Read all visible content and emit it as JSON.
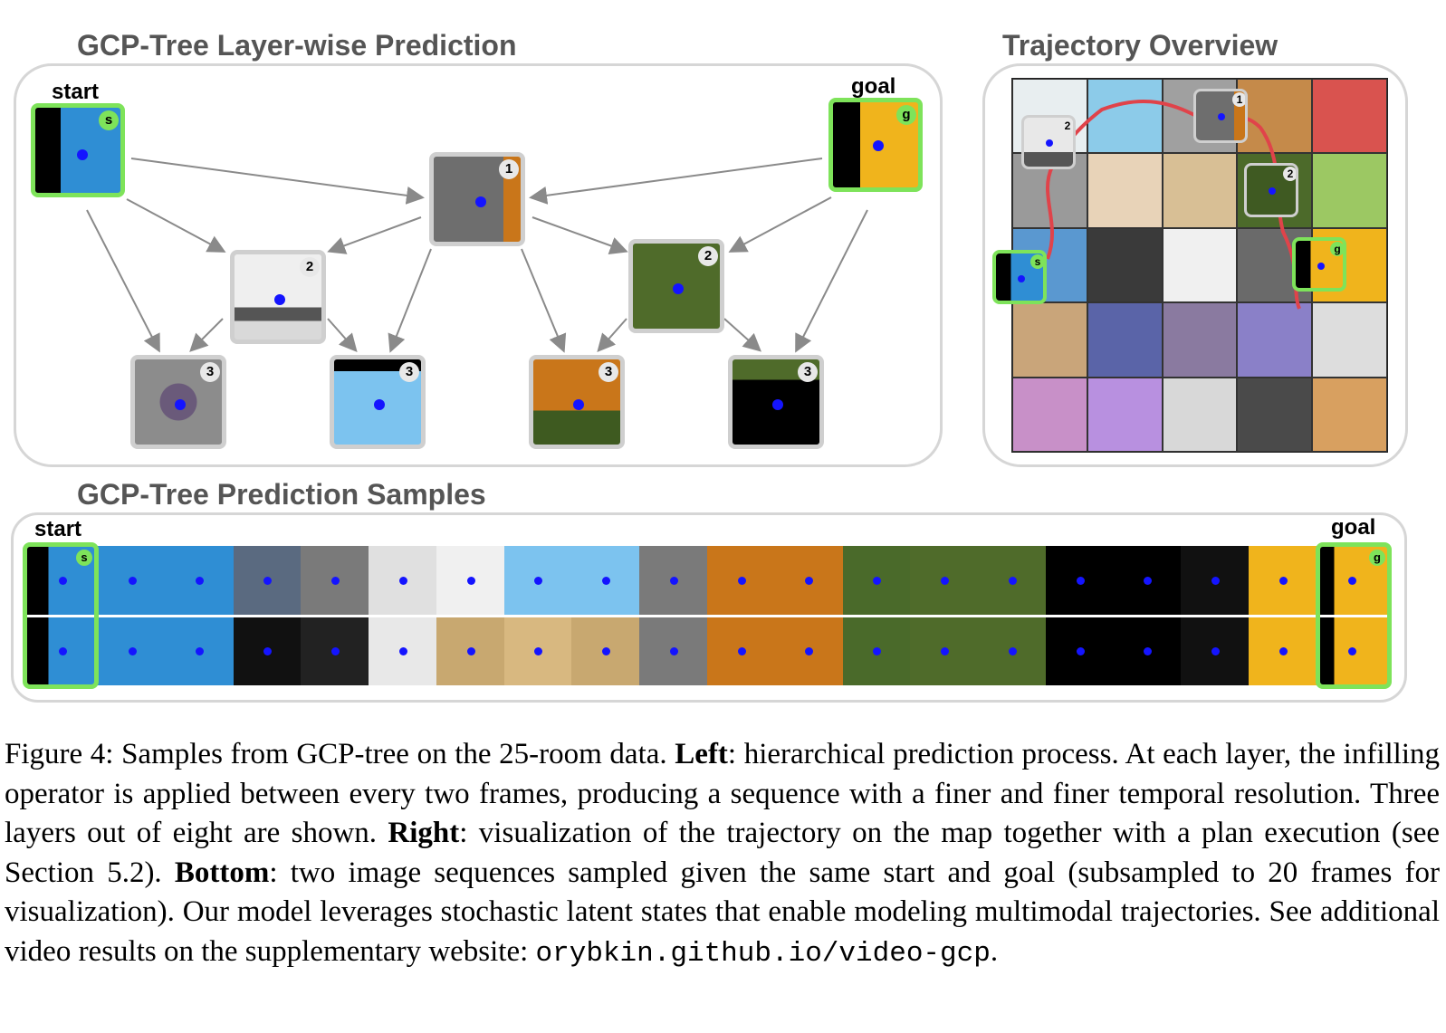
{
  "panels": {
    "layerwise_title": "GCP-Tree Layer-wise Prediction",
    "overview_title": "Trajectory Overview",
    "samples_title": "GCP-Tree Prediction Samples"
  },
  "tree": {
    "start_label": "start",
    "goal_label": "goal",
    "start_badge": "s",
    "goal_badge": "g",
    "layer1_badge": "1",
    "layer2_badge": "2",
    "layer3_badge": "3"
  },
  "overview": {
    "badges": [
      "1",
      "2",
      "2",
      "s",
      "g"
    ]
  },
  "samples": {
    "start_label": "start",
    "goal_label": "goal",
    "start_badge": "s",
    "goal_badge": "g"
  },
  "caption": {
    "fig": "Figure 4: Samples from GCP-tree on the 25-room data. ",
    "left_head": "Left",
    "left_text": ": hierarchical prediction process. At each layer, the infilling operator is applied between every two frames, producing a sequence with a finer and finer temporal resolution. Three layers out of eight are shown. ",
    "right_head": "Right",
    "right_text": ": visualization of the trajectory on the map together with a plan execution (see Section 5.2). ",
    "bottom_head": "Bottom",
    "bottom_text": ": two image sequences sampled given the same start and goal (subsampled to 20 frames for visualization). Our model leverages stochastic latent states that enable modeling multimodal trajectories. See additional video results on the supplementary website: ",
    "url": "orybkin.github.io/video-gcp",
    "end": "."
  },
  "colors": {
    "endpoint_border": "#7ee35a",
    "node_border": "#cfcfcf",
    "arrow": "#8a8a8a",
    "trajectory": "#e0434a",
    "agent_dot": "#1414ff"
  }
}
